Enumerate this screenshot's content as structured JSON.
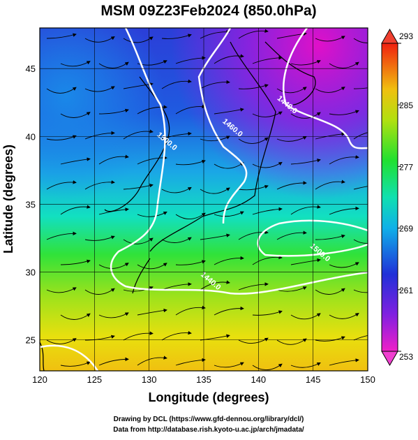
{
  "map": {
    "title": "MSM 09Z23Feb2024 (850.0hPa)",
    "x_label": "Longitude (degrees)",
    "y_label": "Latitude  (degrees)",
    "xlim": [
      120,
      150
    ],
    "ylim": [
      22.7,
      48.0
    ],
    "xticks": [
      120,
      125,
      130,
      135,
      140,
      145,
      150
    ],
    "yticks": [
      25,
      30,
      35,
      40,
      45
    ],
    "colorbar": {
      "lim": [
        253,
        293
      ],
      "ticks": [
        253,
        261,
        269,
        277,
        285,
        293
      ]
    },
    "contour_labels": [
      {
        "text": "1500.0",
        "lon": 131.5,
        "lat": 39.5
      },
      {
        "text": "1460.0",
        "lon": 137.5,
        "lat": 40.5
      },
      {
        "text": "1440.0",
        "lon": 142.5,
        "lat": 42.2
      },
      {
        "text": "1500.0",
        "lon": 145.5,
        "lat": 31.3
      },
      {
        "text": "1440.0",
        "lon": 135.5,
        "lat": 29.2
      }
    ],
    "credits": [
      "Drawing by DCL (https://www.gfd-dennou.org/library/dcl/)",
      "Data from http://database.rish.kyoto-u.ac.jp/arch/jmadata/"
    ]
  }
}
